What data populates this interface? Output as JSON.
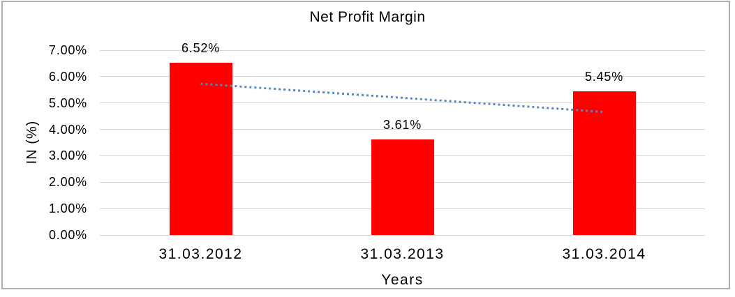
{
  "window": {
    "background_color": "#FFFFFF",
    "border_color": "#B0B0B0"
  },
  "chart_data": {
    "type": "bar",
    "title": "Net Profit Margin",
    "xlabel": "Years",
    "ylabel": "IN (%)",
    "categories": [
      "31.03.2012",
      "31.03.2013",
      "31.03.2014"
    ],
    "values": [
      6.52,
      3.61,
      5.45
    ],
    "data_labels": [
      "6.52%",
      "3.61%",
      "5.45%"
    ],
    "bar_color": "#FF0000",
    "ylim": [
      0,
      7
    ],
    "y_ticks": [
      {
        "value": 0,
        "label": "0.00%"
      },
      {
        "value": 1,
        "label": "1.00%"
      },
      {
        "value": 2,
        "label": "2.00%"
      },
      {
        "value": 3,
        "label": "3.00%"
      },
      {
        "value": 4,
        "label": "4.00%"
      },
      {
        "value": 5,
        "label": "5.00%"
      },
      {
        "value": 6,
        "label": "6.00%"
      },
      {
        "value": 7,
        "label": "7.00%"
      }
    ],
    "grid": true,
    "gridline_color": "#D4D4D4",
    "legend_position": "none",
    "trendline": {
      "type": "linear",
      "style": "dotted",
      "color": "#5487C8",
      "start_value": 5.73,
      "end_value": 4.66
    }
  }
}
